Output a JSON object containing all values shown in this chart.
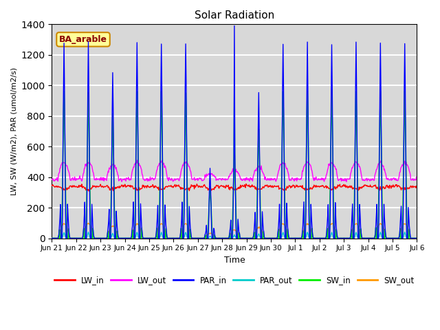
{
  "title": "Solar Radiation",
  "xlabel": "Time",
  "ylabel": "LW, SW (W/m2), PAR (umol/m2/s)",
  "annotation": "BA_arable",
  "ylim": [
    0,
    1400
  ],
  "yticks": [
    0,
    200,
    400,
    600,
    800,
    1000,
    1200,
    1400
  ],
  "xtick_labels": [
    "Jun 21",
    "Jun 22",
    "Jun 23",
    "Jun 24",
    "Jun 25",
    "Jun 26",
    "Jun 27",
    "Jun 28",
    "Jun 29",
    "Jun 30",
    "Jul 1",
    "Jul 2",
    "Jul 3",
    "Jul 4",
    "Jul 5",
    "Jul 6"
  ],
  "legend": [
    "LW_in",
    "LW_out",
    "PAR_in",
    "PAR_out",
    "SW_in",
    "SW_out"
  ],
  "colors": {
    "LW_in": "#ff0000",
    "LW_out": "#ff00ff",
    "PAR_in": "#0000ff",
    "PAR_out": "#00cccc",
    "SW_in": "#00ee00",
    "SW_out": "#ff9900"
  },
  "background_color": "#d8d8d8",
  "grid_color": "#ffffff",
  "annotation_bg": "#ffff99",
  "annotation_border": "#cc8800"
}
